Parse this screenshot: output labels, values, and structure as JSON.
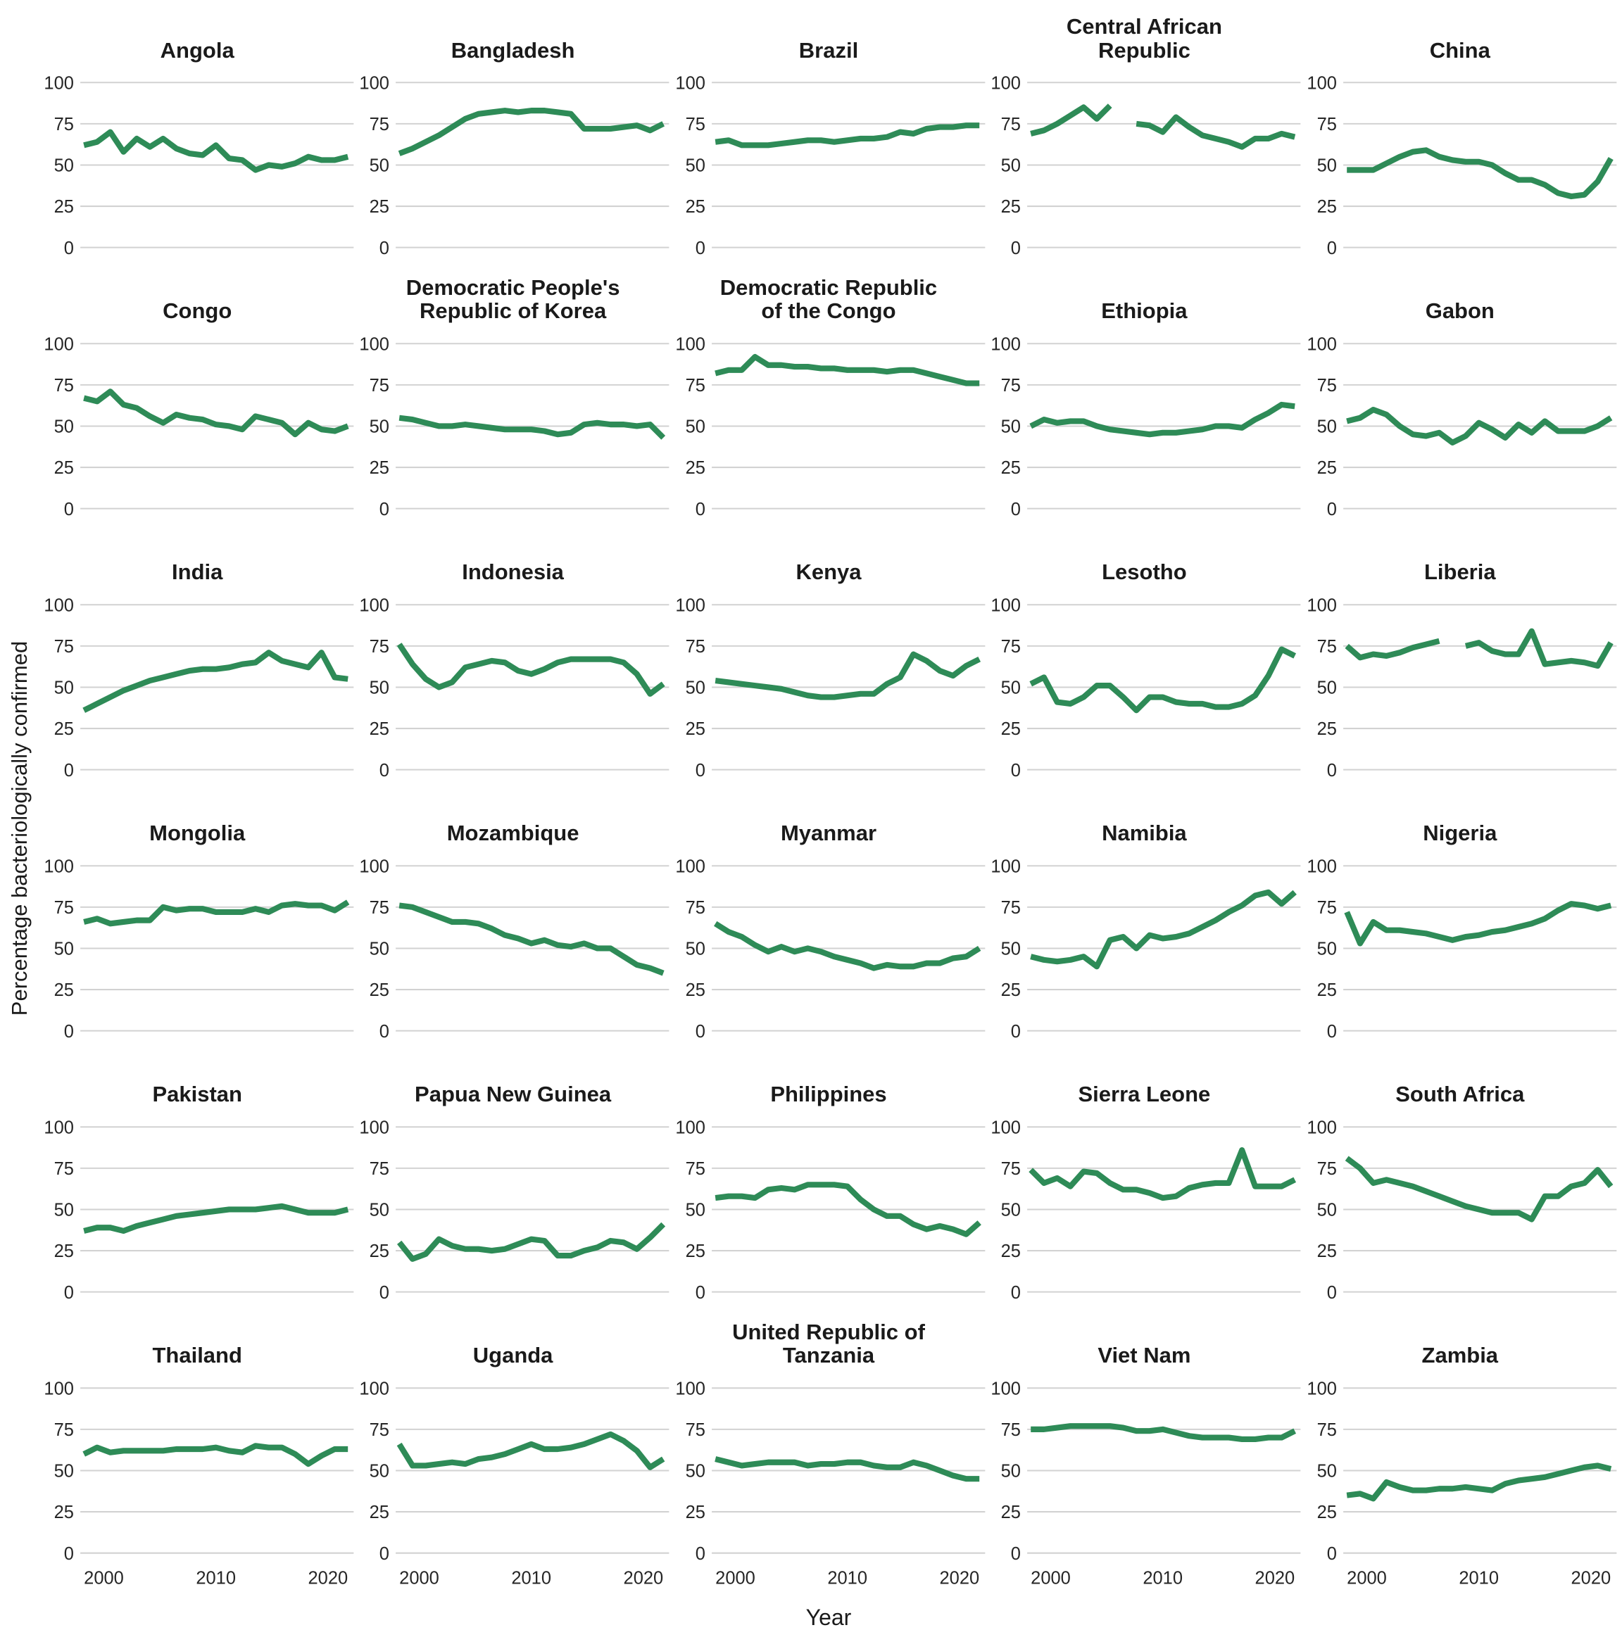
{
  "figure": {
    "ylabel": "Percentage bacteriologically confirmed",
    "xlabel": "Year",
    "line_color": "#2e8b57",
    "gridline_color": "#d2d2d2",
    "background": "#ffffff"
  },
  "chart_data": {
    "type": "line",
    "layout": "small-multiples 6 rows x 5 cols",
    "x_start": 2000,
    "x_end": 2020,
    "x_ticks": [
      2000,
      2010,
      2020
    ],
    "y_ticks": [
      0,
      25,
      50,
      75,
      100
    ],
    "ylim": [
      0,
      100
    ],
    "grid": "horizontal only",
    "legend_position": "none",
    "title": "",
    "xlabel": "Year",
    "ylabel": "Percentage bacteriologically confirmed",
    "facets": [
      {
        "title": "Angola",
        "values": [
          62,
          64,
          70,
          58,
          66,
          61,
          66,
          60,
          57,
          56,
          62,
          54,
          53,
          47,
          50,
          49,
          51,
          55,
          53,
          53,
          55
        ]
      },
      {
        "title": "Bangladesh",
        "values": [
          57,
          60,
          64,
          68,
          73,
          78,
          81,
          82,
          83,
          82,
          83,
          83,
          82,
          81,
          72,
          72,
          72,
          73,
          74,
          71,
          75
        ]
      },
      {
        "title": "Brazil",
        "values": [
          64,
          65,
          62,
          62,
          62,
          63,
          64,
          65,
          65,
          64,
          65,
          66,
          66,
          67,
          70,
          69,
          72,
          73,
          73,
          74,
          74
        ]
      },
      {
        "title": "Central African Republic",
        "values": [
          69,
          71,
          75,
          80,
          85,
          78,
          86,
          null,
          75,
          74,
          70,
          79,
          73,
          68,
          66,
          64,
          61,
          66,
          66,
          69,
          67
        ]
      },
      {
        "title": "China",
        "values": [
          47,
          47,
          47,
          51,
          55,
          58,
          59,
          55,
          53,
          52,
          52,
          50,
          45,
          41,
          41,
          38,
          33,
          31,
          32,
          40,
          54
        ]
      },
      {
        "title": "Congo",
        "values": [
          67,
          65,
          71,
          63,
          61,
          56,
          52,
          57,
          55,
          54,
          51,
          50,
          48,
          56,
          54,
          52,
          45,
          52,
          48,
          47,
          50
        ]
      },
      {
        "title": "Democratic People's Republic of Korea",
        "values": [
          55,
          54,
          52,
          50,
          50,
          51,
          50,
          49,
          48,
          48,
          48,
          47,
          45,
          46,
          51,
          52,
          51,
          51,
          50,
          51,
          43
        ]
      },
      {
        "title": "Democratic Republic of the Congo",
        "values": [
          82,
          84,
          84,
          92,
          87,
          87,
          86,
          86,
          85,
          85,
          84,
          84,
          84,
          83,
          84,
          84,
          82,
          80,
          78,
          76,
          76
        ]
      },
      {
        "title": "Ethiopia",
        "values": [
          50,
          54,
          52,
          53,
          53,
          50,
          48,
          47,
          46,
          45,
          46,
          46,
          47,
          48,
          50,
          50,
          49,
          54,
          58,
          63,
          62
        ]
      },
      {
        "title": "Gabon",
        "values": [
          53,
          55,
          60,
          57,
          50,
          45,
          44,
          46,
          40,
          44,
          52,
          48,
          43,
          51,
          46,
          53,
          47,
          47,
          47,
          50,
          55
        ]
      },
      {
        "title": "India",
        "values": [
          36,
          40,
          44,
          48,
          51,
          54,
          56,
          58,
          60,
          61,
          61,
          62,
          64,
          65,
          71,
          66,
          64,
          62,
          71,
          56,
          55
        ]
      },
      {
        "title": "Indonesia",
        "values": [
          76,
          64,
          55,
          50,
          53,
          62,
          64,
          66,
          65,
          60,
          58,
          61,
          65,
          67,
          67,
          67,
          67,
          65,
          58,
          46,
          52
        ]
      },
      {
        "title": "Kenya",
        "values": [
          54,
          53,
          52,
          51,
          50,
          49,
          47,
          45,
          44,
          44,
          45,
          46,
          46,
          52,
          56,
          70,
          66,
          60,
          57,
          63,
          67
        ]
      },
      {
        "title": "Lesotho",
        "values": [
          52,
          56,
          41,
          40,
          44,
          51,
          51,
          44,
          36,
          44,
          44,
          41,
          40,
          40,
          38,
          38,
          40,
          45,
          57,
          73,
          69
        ]
      },
      {
        "title": "Liberia",
        "values": [
          75,
          68,
          70,
          69,
          71,
          74,
          76,
          78,
          null,
          75,
          77,
          72,
          70,
          70,
          84,
          64,
          65,
          66,
          65,
          63,
          77
        ]
      },
      {
        "title": "Mongolia",
        "values": [
          66,
          68,
          65,
          66,
          67,
          67,
          75,
          73,
          74,
          74,
          72,
          72,
          72,
          74,
          72,
          76,
          77,
          76,
          76,
          73,
          78
        ]
      },
      {
        "title": "Mozambique",
        "values": [
          76,
          75,
          72,
          69,
          66,
          66,
          65,
          62,
          58,
          56,
          53,
          55,
          52,
          51,
          53,
          50,
          50,
          45,
          40,
          38,
          35
        ]
      },
      {
        "title": "Myanmar",
        "values": [
          65,
          60,
          57,
          52,
          48,
          51,
          48,
          50,
          48,
          45,
          43,
          41,
          38,
          40,
          39,
          39,
          41,
          41,
          44,
          45,
          50
        ]
      },
      {
        "title": "Namibia",
        "values": [
          45,
          43,
          42,
          43,
          45,
          39,
          55,
          57,
          50,
          58,
          56,
          57,
          59,
          63,
          67,
          72,
          76,
          82,
          84,
          77,
          84
        ]
      },
      {
        "title": "Nigeria",
        "values": [
          72,
          53,
          66,
          61,
          61,
          60,
          59,
          57,
          55,
          57,
          58,
          60,
          61,
          63,
          65,
          68,
          73,
          77,
          76,
          74,
          76
        ]
      },
      {
        "title": "Pakistan",
        "values": [
          37,
          39,
          39,
          37,
          40,
          42,
          44,
          46,
          47,
          48,
          49,
          50,
          50,
          50,
          51,
          52,
          50,
          48,
          48,
          48,
          50
        ]
      },
      {
        "title": "Papua New Guinea",
        "values": [
          30,
          20,
          23,
          32,
          28,
          26,
          26,
          25,
          26,
          29,
          32,
          31,
          22,
          22,
          25,
          27,
          31,
          30,
          26,
          33,
          41
        ]
      },
      {
        "title": "Philippines",
        "values": [
          57,
          58,
          58,
          57,
          62,
          63,
          62,
          65,
          65,
          65,
          64,
          56,
          50,
          46,
          46,
          41,
          38,
          40,
          38,
          35,
          42
        ]
      },
      {
        "title": "Sierra Leone",
        "values": [
          74,
          66,
          69,
          64,
          73,
          72,
          66,
          62,
          62,
          60,
          57,
          58,
          63,
          65,
          66,
          66,
          86,
          64,
          64,
          64,
          68
        ]
      },
      {
        "title": "South Africa",
        "values": [
          81,
          75,
          66,
          68,
          66,
          64,
          61,
          58,
          55,
          52,
          50,
          48,
          48,
          48,
          44,
          58,
          58,
          64,
          66,
          74,
          64
        ]
      },
      {
        "title": "Thailand",
        "values": [
          60,
          64,
          61,
          62,
          62,
          62,
          62,
          63,
          63,
          63,
          64,
          62,
          61,
          65,
          64,
          64,
          60,
          54,
          59,
          63,
          63
        ]
      },
      {
        "title": "Uganda",
        "values": [
          66,
          53,
          53,
          54,
          55,
          54,
          57,
          58,
          60,
          63,
          66,
          63,
          63,
          64,
          66,
          69,
          72,
          68,
          62,
          52,
          57
        ]
      },
      {
        "title": "United Republic of Tanzania",
        "values": [
          57,
          55,
          53,
          54,
          55,
          55,
          55,
          53,
          54,
          54,
          55,
          55,
          53,
          52,
          52,
          55,
          53,
          50,
          47,
          45,
          45
        ]
      },
      {
        "title": "Viet Nam",
        "values": [
          75,
          75,
          76,
          77,
          77,
          77,
          77,
          76,
          74,
          74,
          75,
          73,
          71,
          70,
          70,
          70,
          69,
          69,
          70,
          70,
          74
        ]
      },
      {
        "title": "Zambia",
        "values": [
          35,
          36,
          33,
          43,
          40,
          38,
          38,
          39,
          39,
          40,
          39,
          38,
          42,
          44,
          45,
          46,
          48,
          50,
          52,
          53,
          51
        ]
      }
    ]
  }
}
